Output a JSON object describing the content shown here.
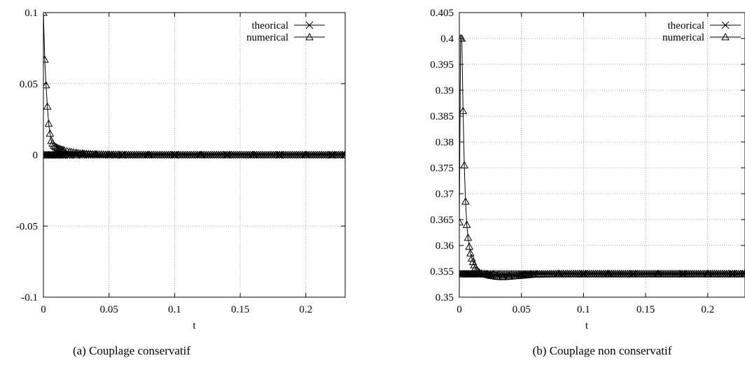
{
  "chart_data": [
    {
      "type": "line",
      "caption": "(a)  Couplage conservatif",
      "xlabel": "t",
      "ylabel": "",
      "xlim": [
        0,
        0.23
      ],
      "ylim": [
        -0.1,
        0.1
      ],
      "x_ticks": [
        0,
        0.05,
        0.1,
        0.15,
        0.2
      ],
      "y_ticks": [
        -0.1,
        -0.05,
        0,
        0.05,
        0.1
      ],
      "x_tick_labels": [
        "0",
        "0.05",
        "0.1",
        "0.15",
        "0.2"
      ],
      "y_tick_labels": [
        "-0.1",
        "-0.05",
        "0",
        "0.05",
        "0.1"
      ],
      "grid": true,
      "legend_position": "top-right",
      "series": [
        {
          "name": "theorical",
          "marker": "x",
          "x": [
            0,
            0.001,
            0.002,
            0.003,
            0.004,
            0.005,
            0.006,
            0.007,
            0.008,
            0.009,
            0.01,
            0.011,
            0.012,
            0.013,
            0.014,
            0.015,
            0.016,
            0.018,
            0.02,
            0.025,
            0.03,
            0.04,
            0.05,
            0.06,
            0.08,
            0.1,
            0.12,
            0.14,
            0.16,
            0.18,
            0.2,
            0.22,
            0.23
          ],
          "y": [
            0,
            0,
            0,
            0,
            0,
            0,
            0,
            0,
            0,
            0,
            0,
            0,
            0,
            0,
            0,
            0,
            0,
            0,
            0,
            0,
            0,
            0,
            0,
            0,
            0,
            0,
            0,
            0,
            0,
            0,
            0,
            0,
            0
          ]
        },
        {
          "name": "numerical",
          "marker": "triangle",
          "x": [
            0,
            0.001,
            0.002,
            0.003,
            0.004,
            0.005,
            0.006,
            0.007,
            0.008,
            0.009,
            0.01,
            0.011,
            0.012,
            0.013,
            0.014,
            0.015,
            0.016,
            0.018,
            0.02,
            0.025,
            0.03,
            0.04,
            0.05,
            0.06,
            0.08,
            0.1,
            0.12,
            0.14,
            0.16,
            0.18,
            0.2,
            0.22,
            0.23
          ],
          "y": [
            0.1,
            0.067,
            0.049,
            0.034,
            0.022,
            0.015,
            0.01,
            0.008,
            0.0065,
            0.0058,
            0.0052,
            0.0047,
            0.0043,
            0.004,
            0.0037,
            0.0034,
            0.0031,
            0.0026,
            0.0022,
            0.0014,
            0.0009,
            0.0004,
            0.0002,
            0.0001,
            0,
            0,
            0,
            0,
            0,
            0,
            0,
            0,
            0
          ]
        }
      ]
    },
    {
      "type": "line",
      "caption": "(b)  Couplage non conservatif",
      "xlabel": "t",
      "ylabel": "",
      "xlim": [
        0,
        0.23
      ],
      "ylim": [
        0.35,
        0.405
      ],
      "x_ticks": [
        0,
        0.05,
        0.1,
        0.15,
        0.2
      ],
      "y_ticks": [
        0.35,
        0.355,
        0.36,
        0.365,
        0.37,
        0.375,
        0.38,
        0.385,
        0.39,
        0.395,
        0.4,
        0.405
      ],
      "x_tick_labels": [
        "0",
        "0.05",
        "0.1",
        "0.15",
        "0.2"
      ],
      "y_tick_labels": [
        "0.35",
        "0.355",
        "0.36",
        "0.365",
        "0.37",
        "0.375",
        "0.38",
        "0.385",
        "0.39",
        "0.395",
        "0.4",
        "0.405"
      ],
      "grid": true,
      "legend_position": "top-right",
      "series": [
        {
          "name": "theorical",
          "marker": "x",
          "x": [
            0,
            0.001,
            0.002,
            0.003,
            0.004,
            0.005,
            0.006,
            0.007,
            0.008,
            0.009,
            0.01,
            0.011,
            0.012,
            0.013,
            0.014,
            0.015,
            0.016,
            0.018,
            0.02,
            0.025,
            0.03,
            0.04,
            0.05,
            0.06,
            0.08,
            0.1,
            0.12,
            0.14,
            0.16,
            0.18,
            0.2,
            0.22,
            0.23
          ],
          "y": [
            0.3545,
            0.3545,
            0.3545,
            0.3545,
            0.3545,
            0.3545,
            0.3545,
            0.3545,
            0.3545,
            0.3545,
            0.3545,
            0.3545,
            0.3545,
            0.3545,
            0.3545,
            0.3545,
            0.3545,
            0.3545,
            0.3545,
            0.3545,
            0.3545,
            0.3545,
            0.3545,
            0.3545,
            0.3545,
            0.3545,
            0.3545,
            0.3545,
            0.3545,
            0.3545,
            0.3545,
            0.3545,
            0.3545
          ]
        },
        {
          "name": "numerical",
          "marker": "triangle",
          "x": [
            0,
            0.001,
            0.002,
            0.003,
            0.004,
            0.005,
            0.006,
            0.007,
            0.008,
            0.009,
            0.01,
            0.011,
            0.012,
            0.013,
            0.014,
            0.015,
            0.016,
            0.018,
            0.02,
            0.025,
            0.03,
            0.035,
            0.04,
            0.05,
            0.06,
            0.08,
            0.1,
            0.12,
            0.14,
            0.16,
            0.18,
            0.2,
            0.22,
            0.23
          ],
          "y": [
            0.3645,
            0.4,
            0.4,
            0.386,
            0.3755,
            0.3685,
            0.364,
            0.3615,
            0.3598,
            0.3585,
            0.3575,
            0.3568,
            0.3562,
            0.3557,
            0.3553,
            0.355,
            0.3548,
            0.3546,
            0.3545,
            0.3542,
            0.354,
            0.3539,
            0.354,
            0.3542,
            0.3544,
            0.3545,
            0.3545,
            0.3545,
            0.3545,
            0.3545,
            0.3545,
            0.3545,
            0.3545,
            0.3545
          ]
        }
      ]
    }
  ]
}
